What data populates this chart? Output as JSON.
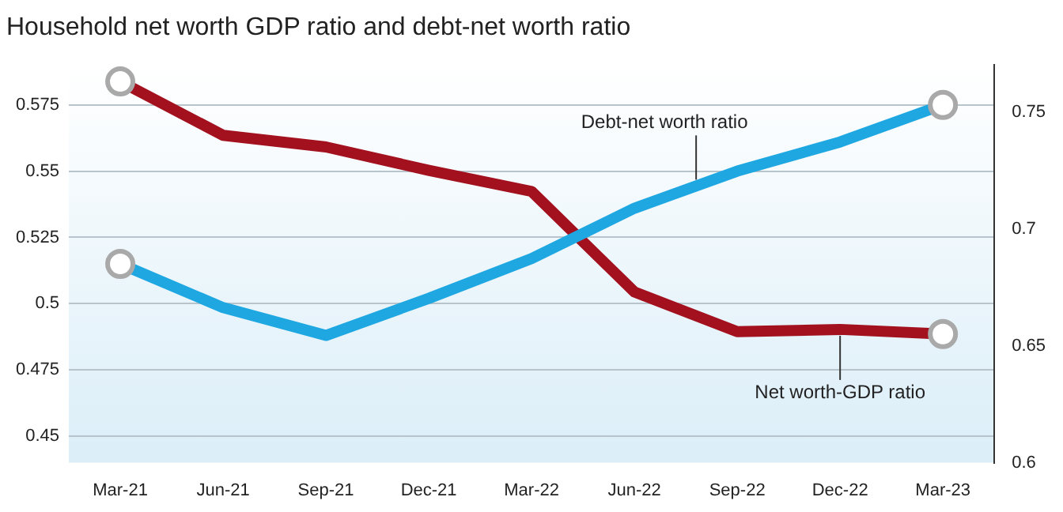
{
  "chart_data": {
    "type": "line",
    "title": "Household net worth GDP ratio and debt-net worth ratio",
    "categories": [
      "Mar-21",
      "Jun-21",
      "Sep-21",
      "Dec-21",
      "Mar-22",
      "Jun-22",
      "Sep-22",
      "Dec-22",
      "Mar-23"
    ],
    "series": [
      {
        "name": "Debt-net worth ratio",
        "color": "#1ea7e1",
        "values": [
          0.515,
          0.4985,
          0.488,
          0.502,
          0.517,
          0.536,
          0.55,
          0.561,
          0.575
        ]
      },
      {
        "name": "Net worth-GDP ratio",
        "color": "#a3111f",
        "axis": "y2",
        "values": [
          0.763,
          0.74,
          0.735,
          0.725,
          0.716,
          0.673,
          0.656,
          0.657,
          0.655
        ]
      }
    ],
    "ylim": [
      0.44,
      0.59
    ],
    "yticks": [
      0.45,
      0.475,
      0.5,
      0.525,
      0.55,
      0.575
    ],
    "y2lim": [
      0.6,
      0.77
    ],
    "y2ticks": [
      0.6,
      0.65,
      0.7,
      0.75
    ],
    "grid": "y",
    "line_style": "solid",
    "legend": false
  }
}
